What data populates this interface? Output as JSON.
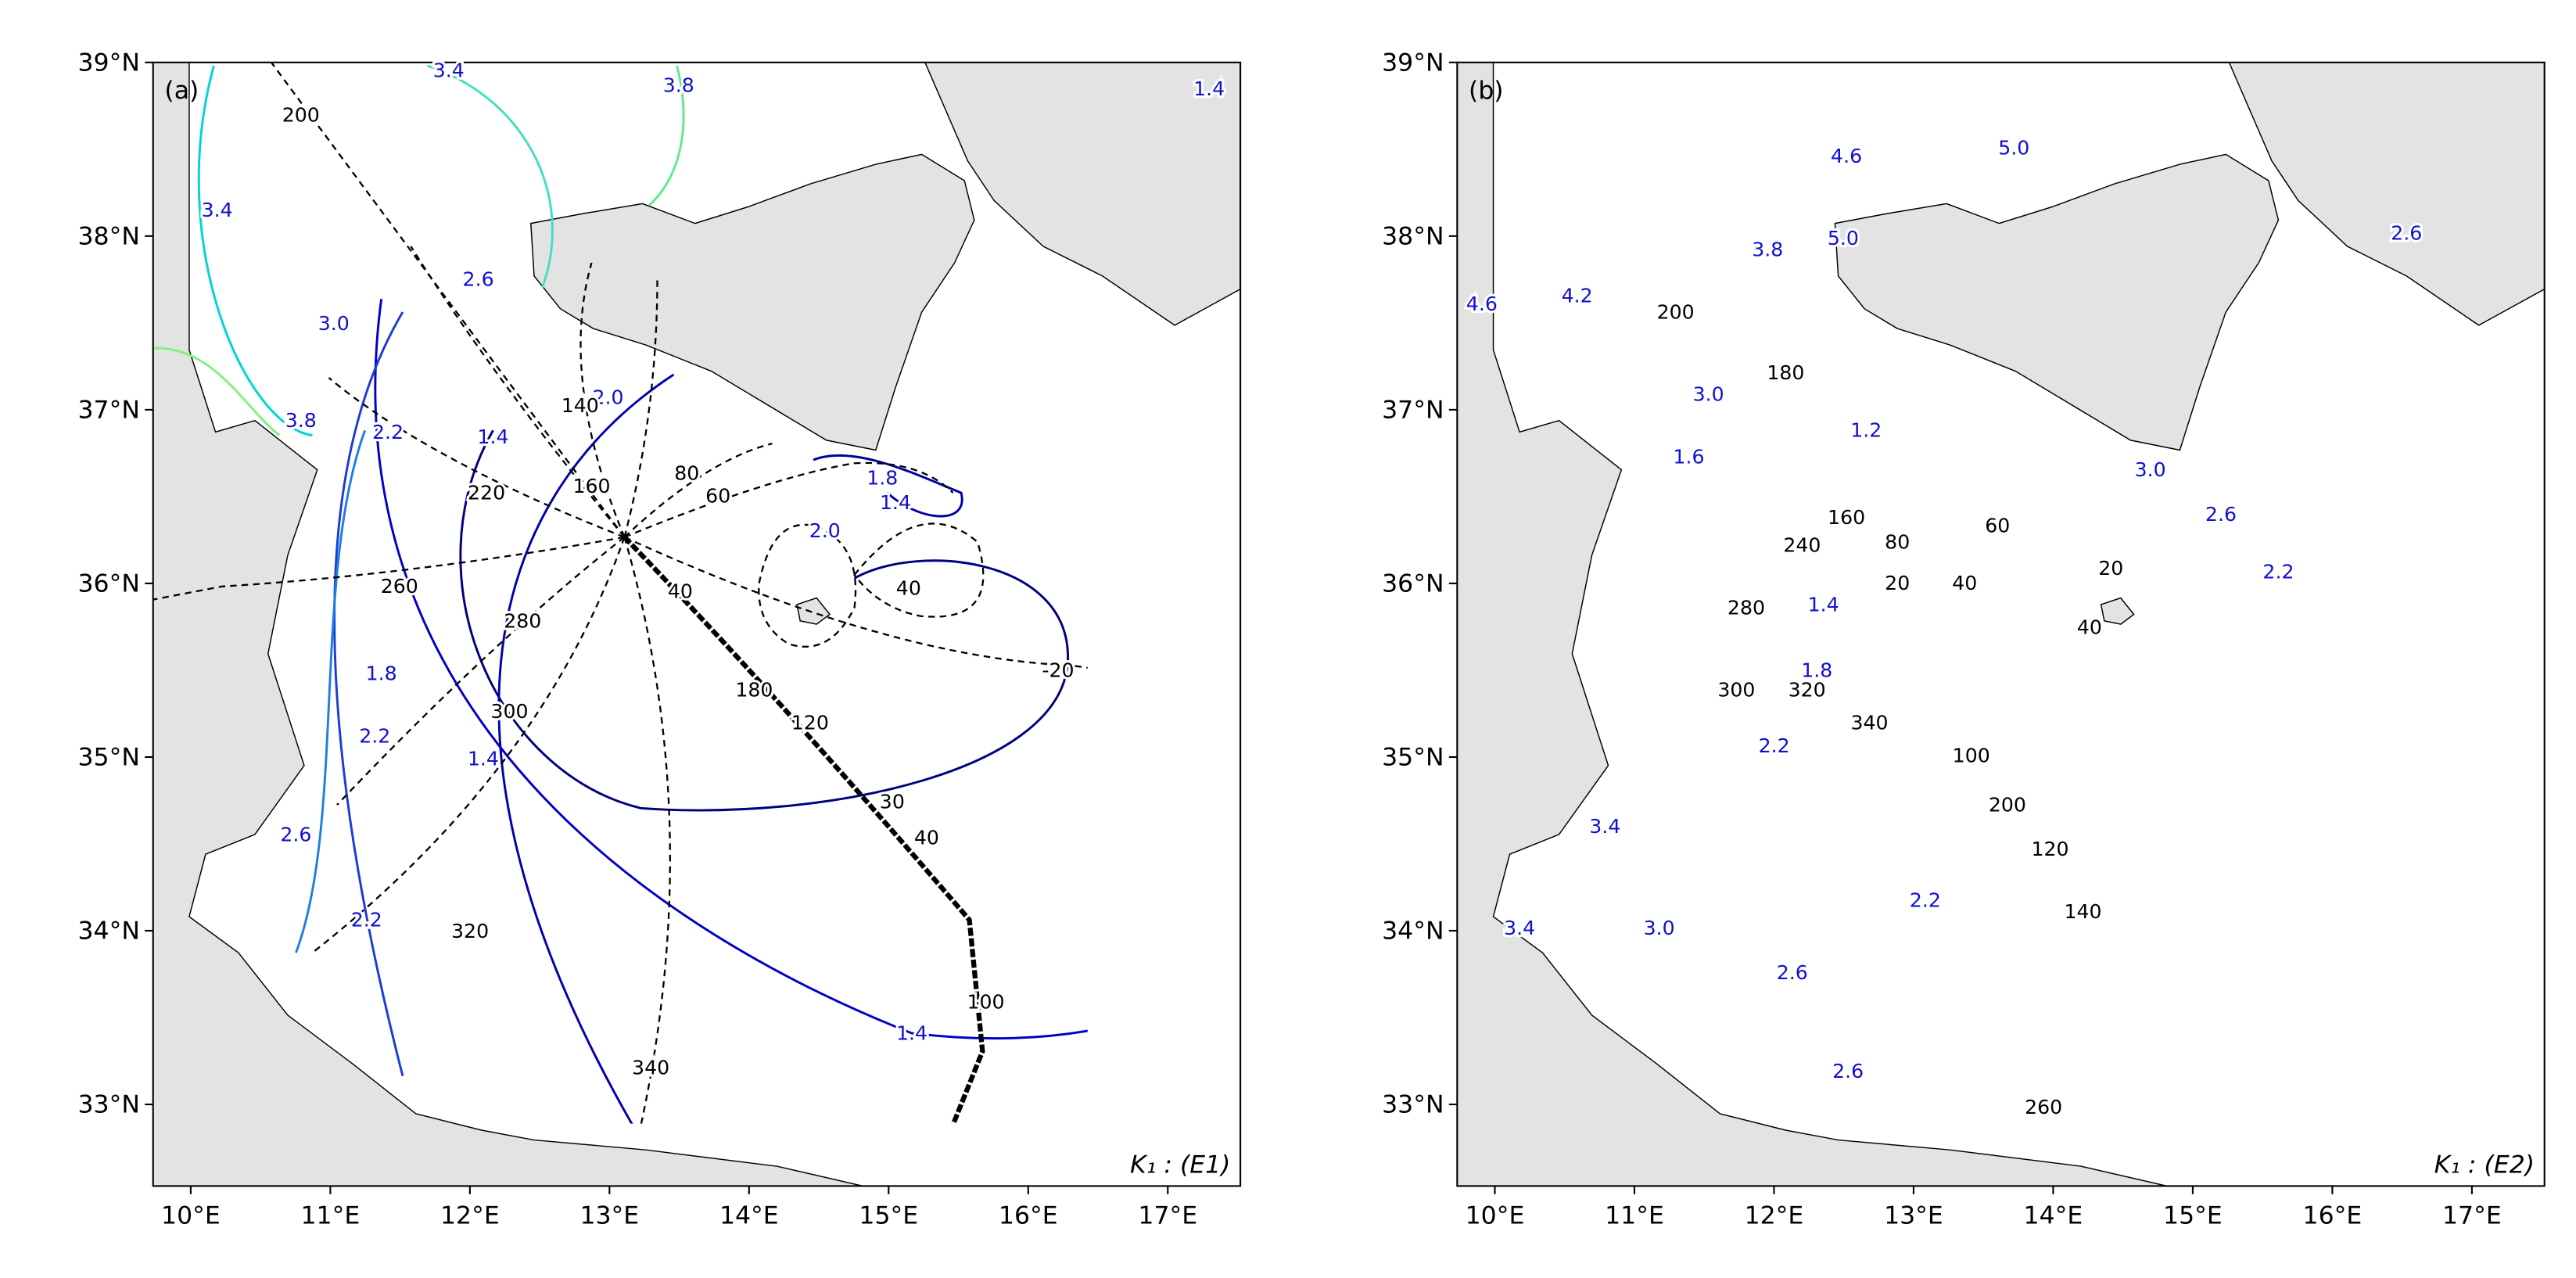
{
  "panels": [
    {
      "label": "(a)",
      "caption": "K₁ : (E1)",
      "xlim": [
        9.73,
        17.52
      ],
      "ylim": [
        32.53,
        39
      ],
      "xticks": [
        {
          "value": 10,
          "label": "10°E"
        },
        {
          "value": 11,
          "label": "11°E"
        },
        {
          "value": 12,
          "label": "12°E"
        },
        {
          "value": 13,
          "label": "13°E"
        },
        {
          "value": 14,
          "label": "14°E"
        },
        {
          "value": 15,
          "label": "15°E"
        },
        {
          "value": 16,
          "label": "16°E"
        },
        {
          "value": 17,
          "label": "17°E"
        }
      ],
      "yticks": [
        {
          "value": 33,
          "label": "33°N"
        },
        {
          "value": 34,
          "label": "34°N"
        },
        {
          "value": 35,
          "label": "35°N"
        },
        {
          "value": 36,
          "label": "36°N"
        },
        {
          "value": 37,
          "label": "37°N"
        },
        {
          "value": 38,
          "label": "38°N"
        },
        {
          "value": 39,
          "label": "39°N"
        }
      ],
      "contour_labels": [
        "200",
        "3.4",
        "3.8",
        "1.4",
        "3.4",
        "3.0",
        "3.8",
        "2.2",
        "2.6",
        "1.4",
        "2.0",
        "140",
        "220",
        "160",
        "80",
        "60",
        "260",
        "40",
        "1.8",
        "1.4",
        "2.0",
        "280",
        "40",
        "-20",
        "1.8",
        "2.2",
        "300",
        "180",
        "120",
        "1.4",
        "30",
        "40",
        "2.6",
        "2.2",
        "320",
        "100",
        "1.4",
        "340"
      ]
    },
    {
      "label": "(b)",
      "caption": "K₁ : (E2)",
      "xlim": [
        9.73,
        17.52
      ],
      "ylim": [
        32.53,
        39
      ],
      "xticks": [
        {
          "value": 10,
          "label": "10°E"
        },
        {
          "value": 11,
          "label": "11°E"
        },
        {
          "value": 12,
          "label": "12°E"
        },
        {
          "value": 13,
          "label": "13°E"
        },
        {
          "value": 14,
          "label": "14°E"
        },
        {
          "value": 15,
          "label": "15°E"
        },
        {
          "value": 16,
          "label": "16°E"
        },
        {
          "value": 17,
          "label": "17°E"
        }
      ],
      "yticks": [
        {
          "value": 33,
          "label": "33°N"
        },
        {
          "value": 34,
          "label": "34°N"
        },
        {
          "value": 35,
          "label": "35°N"
        },
        {
          "value": 36,
          "label": "36°N"
        },
        {
          "value": 37,
          "label": "37°N"
        },
        {
          "value": 38,
          "label": "38°N"
        },
        {
          "value": 39,
          "label": "39°N"
        }
      ],
      "contour_labels": [
        "4.6",
        "5.0",
        "2.6",
        "200",
        "4.2",
        "4.6",
        "5.0",
        "3.8",
        "180",
        "3.0",
        "1.2",
        "1.6",
        "3.0",
        "2.6",
        "160",
        "80",
        "60",
        "240",
        "20",
        "40",
        "20",
        "2.2",
        "1.4",
        "280",
        "40",
        "1.8",
        "300",
        "320",
        "340",
        "2.2",
        "100",
        "200",
        "120",
        "3.4",
        "140",
        "2.2",
        "3.4",
        "3.0",
        "2.6",
        "2.6",
        "260"
      ]
    }
  ]
}
